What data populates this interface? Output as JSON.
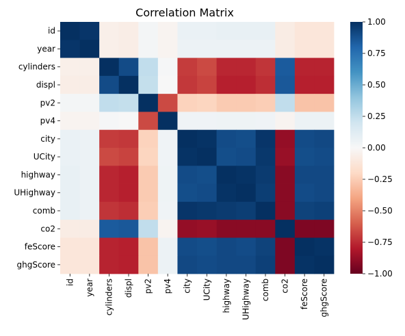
{
  "chart_data": {
    "type": "heatmap",
    "title": "Correlation Matrix",
    "labels": [
      "id",
      "year",
      "cylinders",
      "displ",
      "pv2",
      "pv4",
      "city",
      "UCity",
      "highway",
      "UHighway",
      "comb",
      "co2",
      "feScore",
      "ghgScore"
    ],
    "values": [
      [
        1.0,
        0.98,
        -0.06,
        -0.07,
        0.02,
        -0.03,
        0.07,
        0.07,
        0.08,
        0.08,
        0.08,
        -0.08,
        -0.12,
        -0.12
      ],
      [
        0.98,
        1.0,
        -0.06,
        -0.07,
        0.02,
        -0.03,
        0.06,
        0.06,
        0.06,
        0.06,
        0.06,
        -0.08,
        -0.12,
        -0.12
      ],
      [
        -0.06,
        -0.06,
        1.0,
        0.9,
        0.25,
        0.01,
        -0.7,
        -0.66,
        -0.76,
        -0.76,
        -0.72,
        0.84,
        -0.77,
        -0.77
      ],
      [
        -0.07,
        -0.07,
        0.9,
        1.0,
        0.24,
        0.0,
        -0.71,
        -0.68,
        -0.78,
        -0.78,
        -0.74,
        0.85,
        -0.78,
        -0.78
      ],
      [
        0.02,
        0.02,
        0.25,
        0.24,
        1.0,
        -0.66,
        -0.23,
        -0.22,
        -0.26,
        -0.26,
        -0.25,
        0.25,
        -0.29,
        -0.29
      ],
      [
        -0.03,
        -0.03,
        0.01,
        0.0,
        -0.66,
        1.0,
        0.04,
        0.04,
        0.05,
        0.05,
        0.04,
        -0.03,
        0.06,
        0.06
      ],
      [
        0.07,
        0.06,
        -0.7,
        -0.71,
        -0.23,
        0.04,
        1.0,
        0.99,
        0.9,
        0.89,
        0.98,
        -0.88,
        0.9,
        0.91
      ],
      [
        0.07,
        0.06,
        -0.66,
        -0.68,
        -0.22,
        0.04,
        0.99,
        1.0,
        0.89,
        0.9,
        0.97,
        -0.87,
        0.89,
        0.9
      ],
      [
        0.08,
        0.06,
        -0.76,
        -0.78,
        -0.26,
        0.05,
        0.9,
        0.89,
        1.0,
        0.99,
        0.96,
        -0.91,
        0.91,
        0.91
      ],
      [
        0.08,
        0.06,
        -0.76,
        -0.78,
        -0.26,
        0.05,
        0.89,
        0.9,
        0.99,
        1.0,
        0.95,
        -0.91,
        0.9,
        0.91
      ],
      [
        0.08,
        0.06,
        -0.72,
        -0.74,
        -0.25,
        0.04,
        0.98,
        0.97,
        0.96,
        0.95,
        1.0,
        -0.91,
        0.93,
        0.94
      ],
      [
        -0.08,
        -0.08,
        0.84,
        0.85,
        0.25,
        -0.03,
        -0.88,
        -0.87,
        -0.91,
        -0.91,
        -0.91,
        1.0,
        -0.94,
        -0.94
      ],
      [
        -0.12,
        -0.12,
        -0.77,
        -0.78,
        -0.29,
        0.06,
        0.9,
        0.89,
        0.91,
        0.9,
        0.93,
        -0.94,
        1.0,
        0.99
      ],
      [
        -0.12,
        -0.12,
        -0.77,
        -0.78,
        -0.29,
        0.06,
        0.91,
        0.9,
        0.91,
        0.91,
        0.94,
        -0.94,
        0.99,
        1.0
      ]
    ],
    "colormap": "RdBu",
    "vmin": -1.0,
    "vmax": 1.0,
    "colorbar_ticks": [
      1.0,
      0.75,
      0.5,
      0.25,
      0.0,
      -0.25,
      -0.5,
      -0.75,
      -1.0
    ],
    "colorbar_tick_labels": [
      "1.00",
      "0.75",
      "0.50",
      "0.25",
      "0.00",
      "−0.25",
      "−0.50",
      "−0.75",
      "−1.00"
    ],
    "grid": false
  }
}
